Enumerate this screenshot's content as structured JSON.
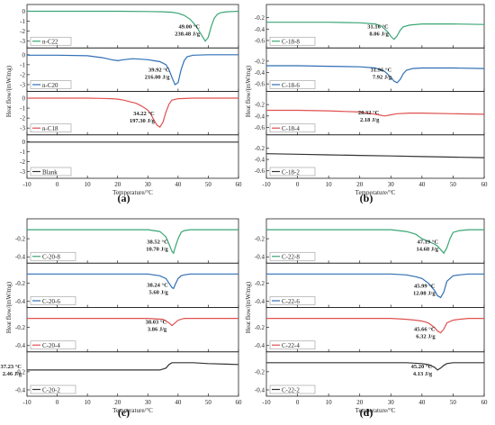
{
  "chart_data": [
    {
      "type": "line",
      "panel_label": "(a)",
      "xlabel": "Temperature/°C",
      "ylabel": "Heat flow/(mW/mg)",
      "xlim": [
        -10,
        60
      ],
      "xticks": [
        "-10",
        "0",
        "10",
        "20",
        "30",
        "40",
        "50",
        "60"
      ],
      "grid": false,
      "subplots": [
        {
          "name": "n-C22",
          "color": "#3aa676",
          "ylim": [
            -3.5,
            0.5
          ],
          "yticks": [
            "0",
            "-1",
            "-2",
            "-3"
          ],
          "annotation": {
            "line1": "49.00 °C",
            "line2": "238.48 J/g"
          },
          "legend_position": "bottom-left",
          "x": [
            -10,
            0,
            10,
            20,
            30,
            35,
            38,
            40,
            42,
            44,
            46,
            48,
            49,
            50,
            51,
            52,
            53,
            54,
            55,
            56,
            58,
            60
          ],
          "y": [
            0,
            0,
            0,
            0,
            -0.02,
            -0.05,
            -0.1,
            -0.2,
            -0.4,
            -0.8,
            -1.5,
            -2.5,
            -3.0,
            -2.6,
            -1.5,
            -0.7,
            -0.3,
            -0.15,
            -0.1,
            -0.05,
            -0.02,
            0
          ]
        },
        {
          "name": "n-C20",
          "color": "#2f6fb5",
          "ylim": [
            -3.5,
            0.5
          ],
          "yticks": [
            "0",
            "-1",
            "-2",
            "-3"
          ],
          "annotation": {
            "line1": "39.92 °C",
            "line2": "216.00 J/g"
          },
          "legend_position": "bottom-left",
          "x": [
            -10,
            0,
            10,
            15,
            18,
            20,
            22,
            25,
            28,
            30,
            32,
            34,
            36,
            37,
            38,
            39,
            40,
            41,
            42,
            43,
            45,
            50,
            60
          ],
          "y": [
            -0.05,
            -0.05,
            -0.1,
            -0.3,
            -0.5,
            -0.6,
            -0.5,
            -0.4,
            -0.45,
            -0.5,
            -0.6,
            -0.7,
            -1.0,
            -1.5,
            -2.3,
            -3.0,
            -2.8,
            -1.5,
            -0.6,
            -0.2,
            -0.05,
            0,
            0
          ]
        },
        {
          "name": "n-C18",
          "color": "#e05050",
          "ylim": [
            -3.5,
            0.5
          ],
          "yticks": [
            "0",
            "-1",
            "-2",
            "-3"
          ],
          "annotation": {
            "line1": "34.22 °C",
            "line2": "197.30 J/g"
          },
          "legend_position": "bottom-left",
          "x": [
            -10,
            0,
            10,
            15,
            18,
            20,
            22,
            24,
            26,
            28,
            30,
            31,
            32,
            33,
            34,
            35,
            36,
            37,
            38,
            40,
            45,
            50,
            60
          ],
          "y": [
            0,
            0,
            0,
            -0.02,
            -0.05,
            -0.1,
            -0.2,
            -0.35,
            -0.5,
            -0.8,
            -1.2,
            -1.6,
            -2.2,
            -2.7,
            -2.9,
            -2.4,
            -1.4,
            -0.6,
            -0.2,
            -0.05,
            0,
            0,
            0
          ]
        },
        {
          "name": "Blank",
          "color": "#333333",
          "ylim": [
            -3.5,
            0.5
          ],
          "yticks": [
            "0",
            "-1",
            "-2",
            "-3"
          ],
          "annotation": null,
          "legend_position": "bottom-left",
          "x": [
            -10,
            10,
            30,
            50,
            60
          ],
          "y": [
            -0.05,
            -0.05,
            -0.05,
            -0.05,
            -0.05
          ]
        }
      ]
    },
    {
      "type": "line",
      "panel_label": "(b)",
      "xlabel": "Temperature/°C",
      "ylabel": "Heat flow/(mW/mg)",
      "xlim": [
        -10,
        60
      ],
      "xticks": [
        "-10",
        "0",
        "10",
        "20",
        "30",
        "40",
        "50",
        "60"
      ],
      "grid": false,
      "subplots": [
        {
          "name": "C-18-8",
          "color": "#3aa676",
          "ylim": [
            -0.7,
            0
          ],
          "yticks": [
            "-0.2",
            "-0.4",
            "-0.6"
          ],
          "annotation": {
            "line1": "31.16 °C",
            "line2": "8.06 J/g"
          },
          "legend_position": "bottom-left",
          "x": [
            -10,
            0,
            10,
            20,
            25,
            27,
            29,
            30,
            31,
            32,
            33,
            34,
            36,
            40,
            50,
            60
          ],
          "y": [
            -0.28,
            -0.28,
            -0.28,
            -0.29,
            -0.31,
            -0.35,
            -0.45,
            -0.53,
            -0.58,
            -0.52,
            -0.42,
            -0.36,
            -0.33,
            -0.31,
            -0.31,
            -0.32
          ]
        },
        {
          "name": "C-18-6",
          "color": "#2f6fb5",
          "ylim": [
            -0.7,
            0
          ],
          "yticks": [
            "-0.2",
            "-0.4",
            "-0.6"
          ],
          "annotation": {
            "line1": "31.96 °C",
            "line2": "7.92 J/g"
          },
          "legend_position": "bottom-left",
          "x": [
            -10,
            0,
            10,
            20,
            25,
            28,
            30,
            31,
            32,
            33,
            34,
            35,
            37,
            40,
            50,
            60
          ],
          "y": [
            -0.28,
            -0.28,
            -0.29,
            -0.3,
            -0.32,
            -0.38,
            -0.48,
            -0.55,
            -0.58,
            -0.52,
            -0.42,
            -0.36,
            -0.33,
            -0.32,
            -0.32,
            -0.33
          ]
        },
        {
          "name": "C-18-4",
          "color": "#e05050",
          "ylim": [
            -0.7,
            0
          ],
          "yticks": [
            "-0.2",
            "-0.4",
            "-0.6"
          ],
          "annotation": {
            "line1": "28.32 °C",
            "line2": "2.18 J/g"
          },
          "legend_position": "bottom-left",
          "x": [
            -10,
            0,
            10,
            20,
            24,
            26,
            28,
            30,
            32,
            36,
            40,
            50,
            60
          ],
          "y": [
            -0.3,
            -0.3,
            -0.31,
            -0.33,
            -0.36,
            -0.38,
            -0.4,
            -0.38,
            -0.36,
            -0.35,
            -0.35,
            -0.36,
            -0.37
          ]
        },
        {
          "name": "C-18-2",
          "color": "#333333",
          "ylim": [
            -0.7,
            0
          ],
          "yticks": [
            "-0.2",
            "-0.4",
            "-0.6"
          ],
          "annotation": null,
          "legend_position": "bottom-left",
          "x": [
            -10,
            0,
            10,
            20,
            30,
            40,
            50,
            60
          ],
          "y": [
            -0.3,
            -0.31,
            -0.32,
            -0.33,
            -0.34,
            -0.35,
            -0.36,
            -0.37
          ]
        }
      ]
    },
    {
      "type": "line",
      "panel_label": "(c)",
      "xlabel": "Temperature/°C",
      "ylabel": "Heat flow/(mW/mg)",
      "xlim": [
        -10,
        60
      ],
      "xticks": [
        "-10",
        "0",
        "10",
        "20",
        "30",
        "40",
        "50",
        "60"
      ],
      "grid": false,
      "subplots": [
        {
          "name": "C-20-8",
          "color": "#3aa676",
          "ylim": [
            -0.45,
            0
          ],
          "yticks": [
            "-0.2",
            "-0.4"
          ],
          "annotation": {
            "line1": "38.52 °C",
            "line2": "10.70 J/g"
          },
          "legend_position": "bottom-left",
          "x": [
            -10,
            0,
            10,
            20,
            30,
            34,
            36,
            37,
            38,
            38.5,
            39,
            40,
            41,
            42,
            44,
            50,
            60
          ],
          "y": [
            -0.1,
            -0.1,
            -0.1,
            -0.1,
            -0.1,
            -0.12,
            -0.18,
            -0.26,
            -0.34,
            -0.36,
            -0.3,
            -0.2,
            -0.13,
            -0.11,
            -0.1,
            -0.1,
            -0.1
          ]
        },
        {
          "name": "C-20-6",
          "color": "#2f6fb5",
          "ylim": [
            -0.45,
            0
          ],
          "yticks": [
            "-0.2",
            "-0.4"
          ],
          "annotation": {
            "line1": "38.24 °C",
            "line2": "5.60 J/g"
          },
          "legend_position": "bottom-left",
          "x": [
            -10,
            0,
            10,
            20,
            30,
            34,
            36,
            37,
            38,
            38.5,
            39,
            40,
            41,
            42,
            44,
            50,
            60
          ],
          "y": [
            -0.1,
            -0.1,
            -0.1,
            -0.1,
            -0.1,
            -0.12,
            -0.15,
            -0.2,
            -0.25,
            -0.26,
            -0.22,
            -0.15,
            -0.12,
            -0.11,
            -0.1,
            -0.1,
            -0.1
          ]
        },
        {
          "name": "C-20-4",
          "color": "#e05050",
          "ylim": [
            -0.45,
            0
          ],
          "yticks": [
            "-0.2",
            "-0.4"
          ],
          "annotation": {
            "line1": "38.03 °C",
            "line2": "3.86 J/g"
          },
          "legend_position": "bottom-left",
          "x": [
            -10,
            0,
            10,
            20,
            30,
            35,
            37,
            38,
            39,
            40,
            42,
            44,
            50,
            60
          ],
          "y": [
            -0.1,
            -0.1,
            -0.1,
            -0.1,
            -0.1,
            -0.11,
            -0.15,
            -0.18,
            -0.15,
            -0.12,
            -0.1,
            -0.1,
            -0.1,
            -0.1
          ]
        },
        {
          "name": "C-20-2",
          "color": "#333333",
          "ylim": [
            -0.45,
            0
          ],
          "yticks": [
            "-0.2",
            "-0.4"
          ],
          "annotation": {
            "line1": "37.23 °C",
            "line2": "2.46 J/g"
          },
          "legend_position": "bottom-left",
          "x": [
            -10,
            0,
            10,
            20,
            30,
            34,
            36,
            37,
            38,
            39,
            40,
            42,
            45,
            50,
            60
          ],
          "y": [
            -0.18,
            -0.18,
            -0.18,
            -0.18,
            -0.18,
            -0.18,
            -0.16,
            -0.12,
            -0.1,
            -0.1,
            -0.1,
            -0.1,
            -0.1,
            -0.11,
            -0.12
          ]
        }
      ]
    },
    {
      "type": "line",
      "panel_label": "(d)",
      "xlabel": "Temperature/°C",
      "ylabel": "Heat flow/(mW/mg)",
      "xlim": [
        -10,
        60
      ],
      "xticks": [
        "-10",
        "0",
        "10",
        "20",
        "30",
        "40",
        "50",
        "60"
      ],
      "grid": false,
      "subplots": [
        {
          "name": "C-22-8",
          "color": "#3aa676",
          "ylim": [
            -0.45,
            0
          ],
          "yticks": [
            "-0.2",
            "-0.4"
          ],
          "annotation": {
            "line1": "47.19 °C",
            "line2": "14.68 J/g"
          },
          "legend_position": "bottom-left",
          "x": [
            -10,
            0,
            10,
            20,
            30,
            35,
            38,
            40,
            42,
            44,
            45,
            46,
            47,
            48,
            49,
            50,
            52,
            55,
            60
          ],
          "y": [
            -0.1,
            -0.1,
            -0.1,
            -0.1,
            -0.1,
            -0.12,
            -0.15,
            -0.2,
            -0.23,
            -0.26,
            -0.28,
            -0.32,
            -0.36,
            -0.3,
            -0.2,
            -0.13,
            -0.11,
            -0.1,
            -0.1
          ]
        },
        {
          "name": "C-22-6",
          "color": "#2f6fb5",
          "ylim": [
            -0.45,
            0
          ],
          "yticks": [
            "-0.2",
            "-0.4"
          ],
          "annotation": {
            "line1": "45.99 °C",
            "line2": "12.08 J/g"
          },
          "legend_position": "bottom-left",
          "x": [
            -10,
            0,
            10,
            20,
            30,
            35,
            38,
            40,
            42,
            44,
            45,
            46,
            47,
            48,
            50,
            52,
            55,
            60
          ],
          "y": [
            -0.1,
            -0.1,
            -0.1,
            -0.1,
            -0.1,
            -0.11,
            -0.13,
            -0.15,
            -0.2,
            -0.28,
            -0.34,
            -0.36,
            -0.3,
            -0.18,
            -0.12,
            -0.11,
            -0.1,
            -0.1
          ]
        },
        {
          "name": "C-22-4",
          "color": "#e05050",
          "ylim": [
            -0.45,
            0
          ],
          "yticks": [
            "-0.2",
            "-0.4"
          ],
          "annotation": {
            "line1": "45.66 °C",
            "line2": "6.32 J/g"
          },
          "legend_position": "bottom-left",
          "x": [
            -10,
            0,
            10,
            20,
            30,
            35,
            38,
            40,
            42,
            44,
            45,
            46,
            47,
            48,
            50,
            52,
            55,
            60
          ],
          "y": [
            -0.1,
            -0.1,
            -0.1,
            -0.1,
            -0.1,
            -0.11,
            -0.12,
            -0.13,
            -0.15,
            -0.2,
            -0.24,
            -0.26,
            -0.22,
            -0.15,
            -0.12,
            -0.11,
            -0.1,
            -0.1
          ]
        },
        {
          "name": "C-22-2",
          "color": "#333333",
          "ylim": [
            -0.45,
            0
          ],
          "yticks": [
            "-0.2",
            "-0.4"
          ],
          "annotation": {
            "line1": "45.20 °C",
            "line2": "4.13 J/g"
          },
          "legend_position": "bottom-left",
          "x": [
            -10,
            0,
            10,
            20,
            30,
            35,
            40,
            42,
            44,
            45,
            46,
            47,
            48,
            50,
            55,
            60
          ],
          "y": [
            -0.1,
            -0.1,
            -0.1,
            -0.1,
            -0.1,
            -0.1,
            -0.11,
            -0.12,
            -0.15,
            -0.18,
            -0.16,
            -0.13,
            -0.11,
            -0.1,
            -0.1,
            -0.1
          ]
        }
      ]
    }
  ]
}
